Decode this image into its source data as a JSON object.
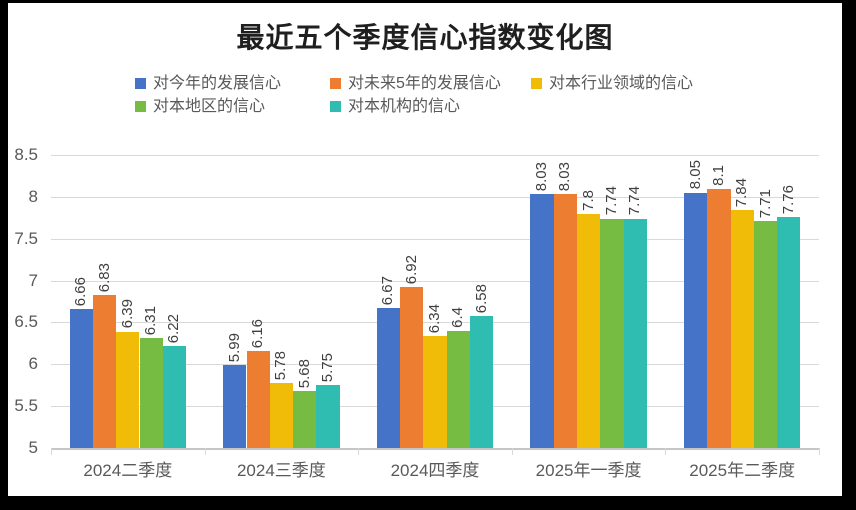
{
  "window": {
    "frame_color": "#000000",
    "canvas_color": "#ffffff"
  },
  "chart_data": {
    "type": "bar",
    "title": "最近五个季度信心指数变化图",
    "categories": [
      "2024二季度",
      "2024三季度",
      "2024四季度",
      "2025年一季度",
      "2025年二季度"
    ],
    "series": [
      {
        "name": "对今年的发展信心",
        "color": "#4573C8",
        "values": [
          6.66,
          5.99,
          6.67,
          8.03,
          8.05
        ]
      },
      {
        "name": "对未来5年的发展信心",
        "color": "#EC7D31",
        "values": [
          6.83,
          6.16,
          6.92,
          8.03,
          8.1
        ]
      },
      {
        "name": "对本行业领域的信心",
        "color": "#F0BC08",
        "values": [
          6.39,
          5.78,
          6.34,
          7.8,
          7.84
        ]
      },
      {
        "name": "对本地区的信心",
        "color": "#76BC43",
        "values": [
          6.31,
          5.68,
          6.4,
          7.74,
          7.71
        ]
      },
      {
        "name": "对本机构的信心",
        "color": "#2FBDB2",
        "values": [
          6.22,
          5.75,
          6.58,
          7.74,
          7.76
        ]
      }
    ],
    "ylim": [
      5,
      8.5
    ],
    "ytick_step": 0.5,
    "yticks": [
      "8.5",
      "8",
      "7.5",
      "7",
      "6.5",
      "6",
      "5.5",
      "5"
    ],
    "grid": true,
    "legend_position": "top",
    "legend_rows": [
      [
        0,
        1,
        2
      ],
      [
        3,
        4
      ]
    ],
    "data_labels": true,
    "data_label_rotation": 270
  },
  "colors": {
    "grid": "#D9D9D9",
    "axis_line": "#C6C6C6",
    "axis_text": "#595959",
    "data_label": "#3F3F3F",
    "legend_text": "#595959",
    "title_text": "#1F1F1F"
  }
}
